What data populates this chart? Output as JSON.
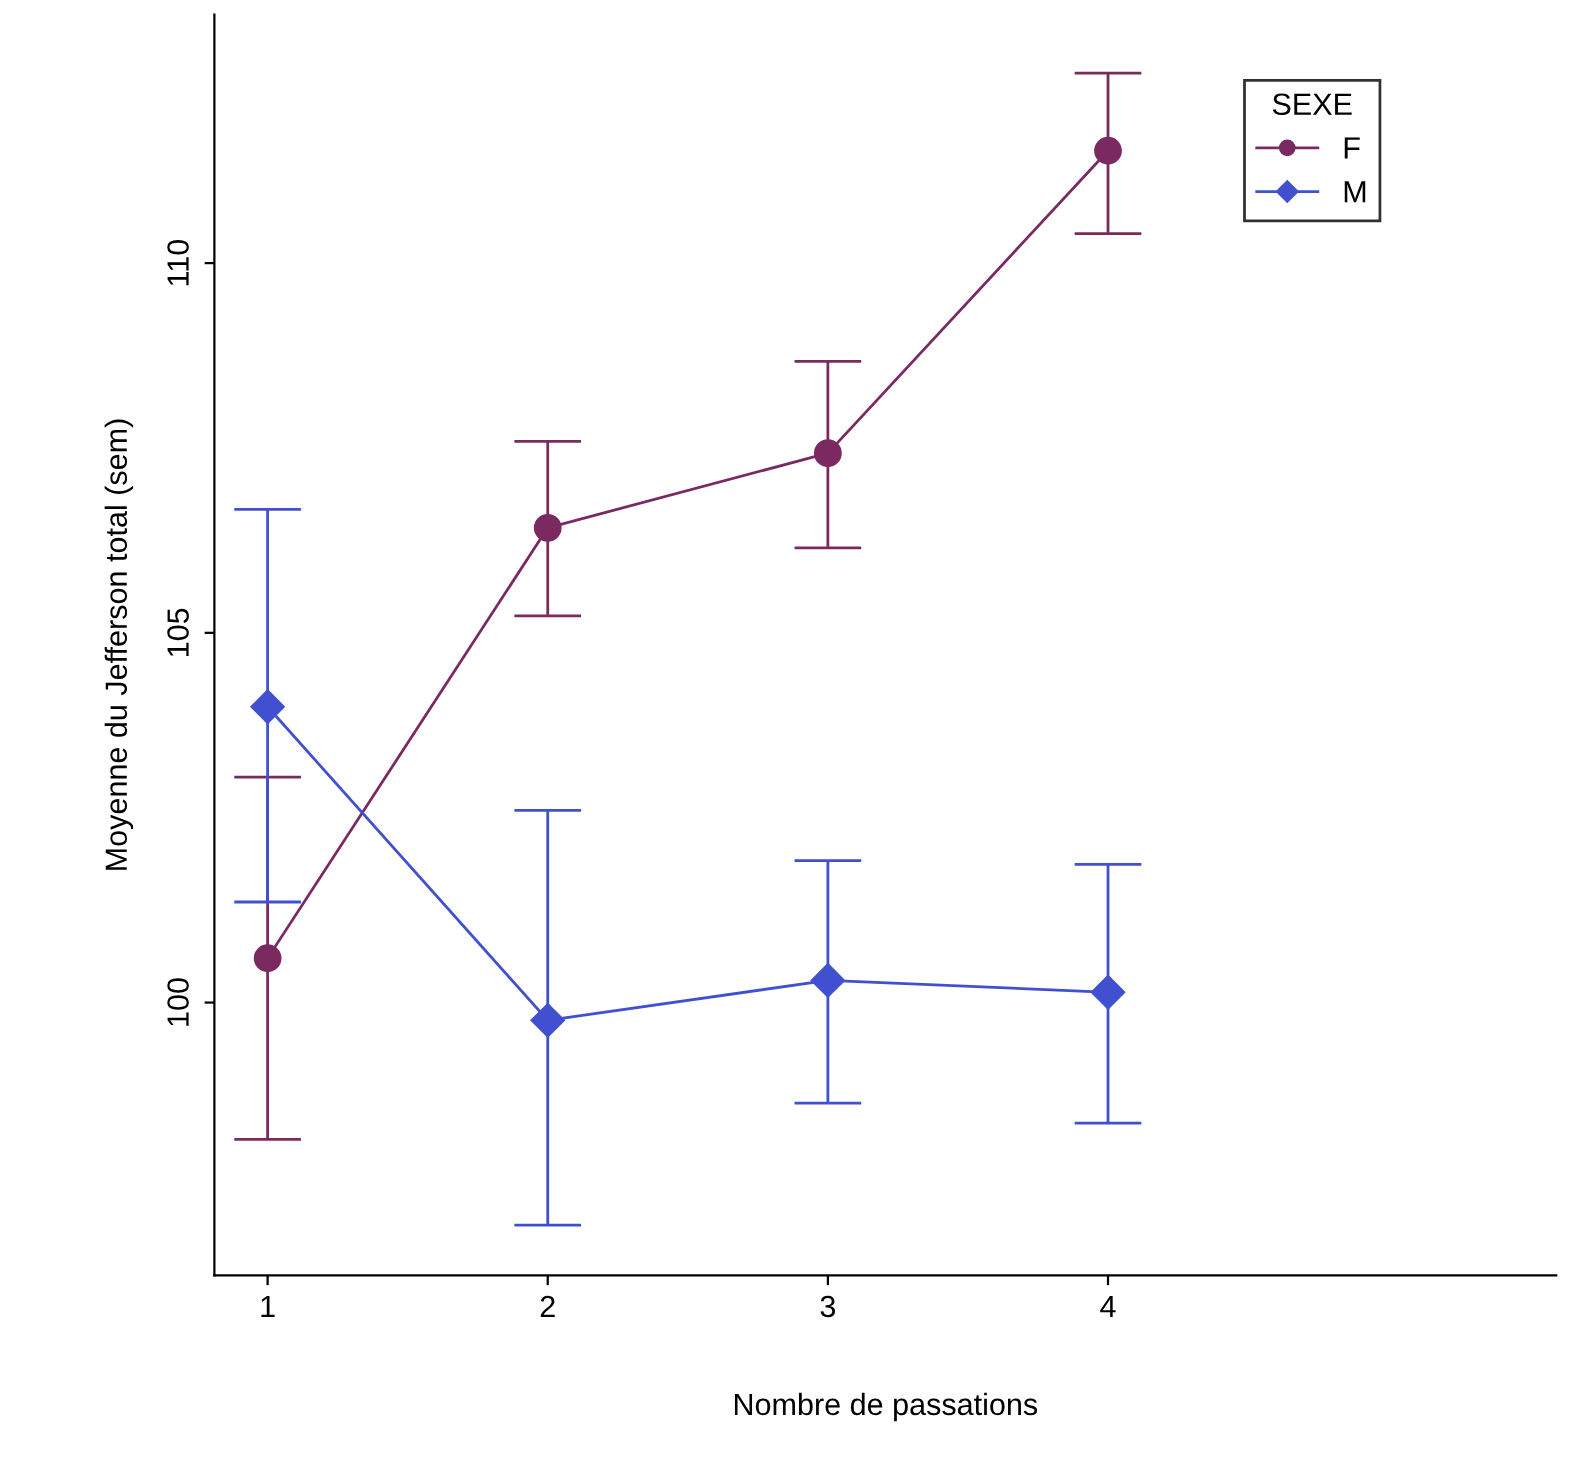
{
  "chart_data": {
    "type": "line",
    "xlabel": "Nombre de passations",
    "ylabel": "Moyenne du Jefferson total (sem)",
    "x": [
      1,
      2,
      3,
      4
    ],
    "series": [
      {
        "name": "F",
        "color": "#7a2a60",
        "marker": "circle",
        "values": [
          100.6,
          106.42,
          107.43,
          111.52
        ],
        "errors": [
          [
            98.15,
            103.05
          ],
          [
            105.23,
            107.59
          ],
          [
            106.15,
            108.67
          ],
          [
            110.4,
            112.57
          ]
        ]
      },
      {
        "name": "M",
        "color": "#4050d0",
        "marker": "diamond",
        "values": [
          104.0,
          99.76,
          100.3,
          100.14
        ],
        "errors": [
          [
            101.36,
            106.67
          ],
          [
            96.99,
            102.6
          ],
          [
            98.64,
            101.92
          ],
          [
            98.37,
            101.87
          ]
        ]
      }
    ],
    "xlim": [
      0.81,
      5.6
    ],
    "ylim": [
      96.31,
      113.36
    ],
    "xticks": [
      1,
      2,
      3,
      4
    ],
    "yticks": [
      100,
      105,
      110
    ],
    "grid": false,
    "legend": "top right",
    "legend_title": "SEXE",
    "line_style": "solid"
  }
}
